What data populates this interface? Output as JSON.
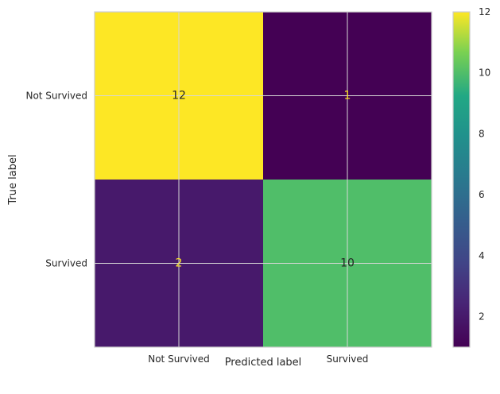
{
  "chart_data": {
    "type": "heatmap",
    "xlabel": "Predicted label",
    "ylabel": "True label",
    "x_categories": [
      "Not Survived",
      "Survived"
    ],
    "y_categories": [
      "Not Survived",
      "Survived"
    ],
    "values": [
      [
        12,
        1
      ],
      [
        2,
        10
      ]
    ],
    "colorbar": {
      "range": [
        1,
        12
      ],
      "ticks": [
        2,
        4,
        6,
        8,
        10,
        12
      ],
      "colormap": "viridis"
    },
    "grid": true
  }
}
